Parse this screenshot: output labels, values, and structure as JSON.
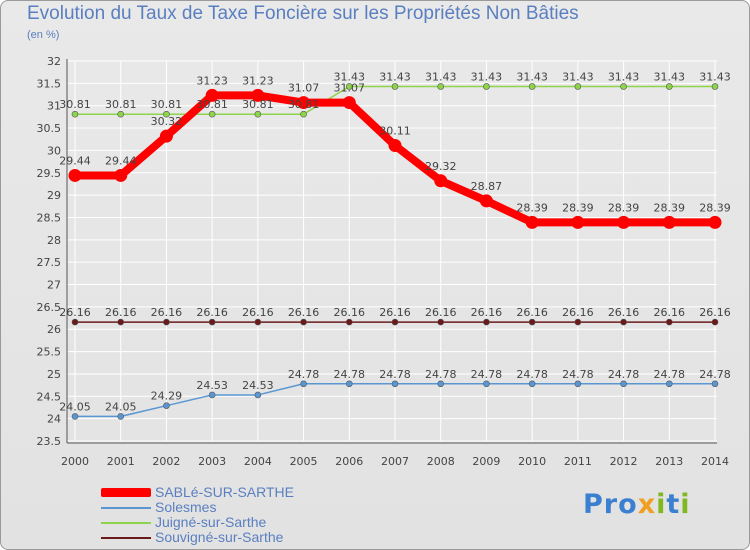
{
  "header": {
    "title": "Evolution du Taux de Taxe Foncière sur les Propriétés Non Bâties",
    "subtitle": "(en %)"
  },
  "logo": {
    "text": "Proxiti"
  },
  "chart_data": {
    "type": "line",
    "x": [
      "2000",
      "2001",
      "2002",
      "2003",
      "2004",
      "2005",
      "2006",
      "2007",
      "2008",
      "2009",
      "2010",
      "2011",
      "2012",
      "2013",
      "2014"
    ],
    "ylim": [
      23.5,
      31.5
    ],
    "yticks": [
      "23.5",
      "24",
      "24.5",
      "25",
      "25.5",
      "26",
      "26.5",
      "27",
      "27.5",
      "28",
      "28.5",
      "29",
      "29.5",
      "30",
      "30.5",
      "31",
      "31.5",
      "32"
    ],
    "grid": true,
    "legend_position": "bottom-left",
    "series": [
      {
        "name": "SABLé-SUR-SARTHE",
        "color": "#ff0000",
        "values": [
          29.44,
          29.44,
          30.32,
          31.23,
          31.23,
          31.07,
          31.07,
          30.11,
          29.32,
          28.87,
          28.39,
          28.39,
          28.39,
          28.39,
          28.39
        ],
        "labels": [
          "29.44",
          "29.44",
          "30.32",
          "31.23",
          "31.23",
          "31.07",
          "31.07",
          "30.11",
          "29.32",
          "28.87",
          "28.39",
          "28.39",
          "28.39",
          "28.39",
          "28.39"
        ]
      },
      {
        "name": "Solesmes",
        "color": "#5a96d2",
        "values": [
          24.05,
          24.05,
          24.29,
          24.53,
          24.53,
          24.78,
          24.78,
          24.78,
          24.78,
          24.78,
          24.78,
          24.78,
          24.78,
          24.78,
          24.78
        ],
        "labels": [
          "24.05",
          "24.05",
          "24.29",
          "24.53",
          "24.53",
          "24.78",
          "24.78",
          "24.78",
          "24.78",
          "24.78",
          "24.78",
          "24.78",
          "24.78",
          "24.78",
          "24.78"
        ]
      },
      {
        "name": "Juigné-sur-Sarthe",
        "color": "#8ed44a",
        "values": [
          30.81,
          30.81,
          30.81,
          30.81,
          30.81,
          30.81,
          31.43,
          31.43,
          31.43,
          31.43,
          31.43,
          31.43,
          31.43,
          31.43,
          31.43
        ],
        "labels": [
          "30.81",
          "30.81",
          "30.81",
          "30.81",
          "30.81",
          "30.81",
          "31.43",
          "31.43",
          "31.43",
          "31.43",
          "31.43",
          "31.43",
          "31.43",
          "31.43",
          "31.43"
        ]
      },
      {
        "name": "Souvigné-sur-Sarthe",
        "color": "#6b1a1a",
        "values": [
          26.16,
          26.16,
          26.16,
          26.16,
          26.16,
          26.16,
          26.16,
          26.16,
          26.16,
          26.16,
          26.16,
          26.16,
          26.16,
          26.16,
          26.16
        ],
        "labels": [
          "26.16",
          "26.16",
          "26.16",
          "26.16",
          "26.16",
          "26.16",
          "26.16",
          "26.16",
          "26.16",
          "26.16",
          "26.16",
          "26.16",
          "26.16",
          "26.16",
          "26.16"
        ]
      }
    ]
  }
}
